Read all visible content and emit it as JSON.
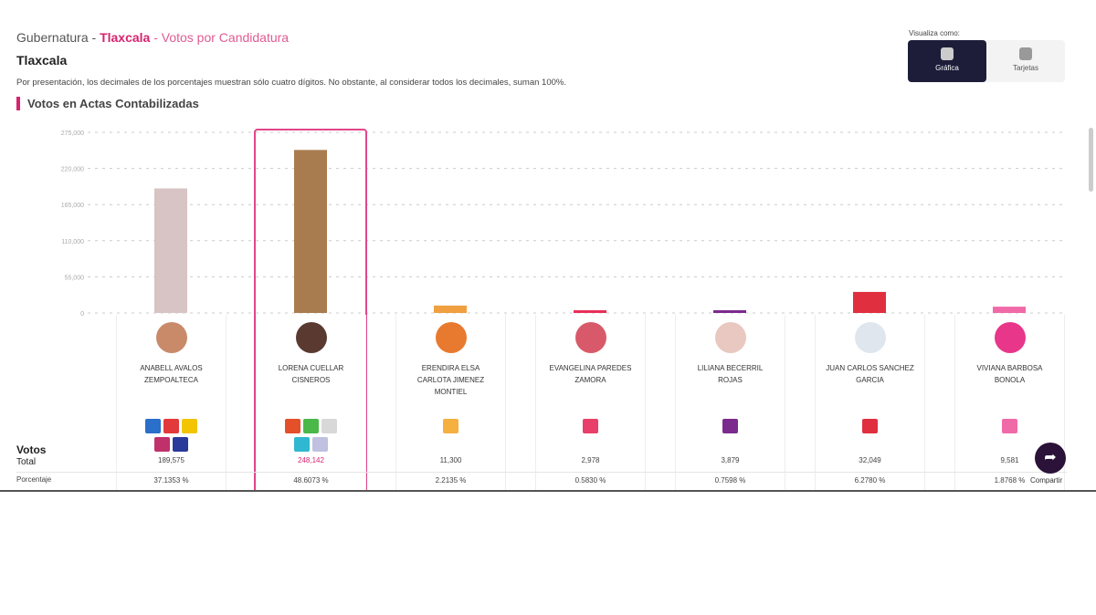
{
  "breadcrumb": {
    "part1": "Gubernatura - ",
    "state": "Tlaxcala",
    "part3": " - Votos por Candidatura"
  },
  "title": "Tlaxcala",
  "note": "Por presentación, los decimales de los porcentajes muestran sólo cuatro dígitos. No obstante, al considerar todos los decimales, suman 100%.",
  "section": "Votos en Actas Contabilizadas",
  "view": {
    "label": "Visualiza como:",
    "options": [
      "Gráfica",
      "Tarjetas"
    ],
    "selected": "Gráfica"
  },
  "row_labels": {
    "votos": "Votos",
    "total": "Total",
    "porcentaje": "Porcentaje"
  },
  "share": "Compartir",
  "colors": {
    "accent": "#d6246e",
    "dark": "#1d1d3a"
  },
  "chart_data": {
    "type": "bar",
    "title": "Votos en Actas Contabilizadas",
    "ylim": [
      0,
      275000
    ],
    "yticks": [
      "0",
      "55,000",
      "110,000",
      "165,000",
      "220,000",
      "275,000"
    ],
    "grid": true,
    "categories": [
      "ANABELL AVALOS ZEMPOALTECA",
      "LORENA CUELLAR CISNEROS",
      "ERENDIRA ELSA CARLOTA JIMENEZ MONTIEL",
      "EVANGELINA PAREDES ZAMORA",
      "LILIANA BECERRIL ROJAS",
      "JUAN CARLOS SANCHEZ GARCIA",
      "VIVIANA BARBOSA BONOLA"
    ],
    "values": [
      189575,
      248142,
      11300,
      2978,
      3879,
      32049,
      9581
    ],
    "votes_text": [
      "189,575",
      "248,142",
      "11,300",
      "2,978",
      "3,879",
      "32,049",
      "9,581"
    ],
    "percent_text": [
      "37.1353 %",
      "48.6073 %",
      "2.2135 %",
      "0.5830 %",
      "0.7598 %",
      "6.2780 %",
      "1.8768 %"
    ],
    "bar_colors": [
      "#d8c4c4",
      "#a97c50",
      "#f0a040",
      "#e8305a",
      "#7b2a8e",
      "#e0303f",
      "#f06aa8"
    ],
    "avatar_colors": [
      "#c98a6a",
      "#5a3a30",
      "#e87a30",
      "#d85a6a",
      "#e8c8c0",
      "#dfe6ee",
      "#e8368a"
    ],
    "party_logos": [
      [
        "#2a6fc9",
        "#e23a3a",
        "#f2c500",
        "#c0306a",
        "#2a3a9a"
      ],
      [
        "#e3502a",
        "#4ab848",
        "#d8d8d8",
        "#30b8d0",
        "#c0c0e0"
      ],
      [
        "#f6b040"
      ],
      [
        "#e8406a"
      ],
      [
        "#7b2a8e"
      ],
      [
        "#e0303f"
      ],
      [
        "#f06aa8"
      ]
    ],
    "highlighted": 1
  }
}
